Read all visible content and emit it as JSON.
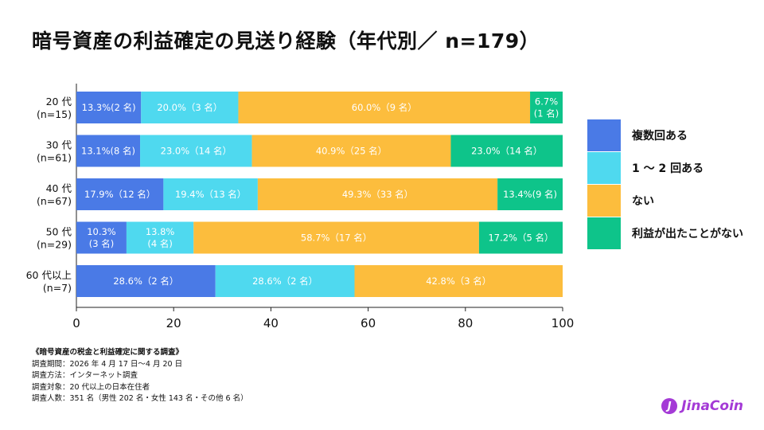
{
  "title": "暗号資産の利益確定の見送り経験（年代別／ n=179）",
  "chart_data": {
    "type": "bar",
    "orientation": "horizontal",
    "stacked": true,
    "categories": [
      [
        "20 代",
        "(n=15)"
      ],
      [
        "30 代",
        "(n=61)"
      ],
      [
        "40 代",
        "(n=67)"
      ],
      [
        "50 代",
        "(n=29)"
      ],
      [
        "60 代以上",
        "(n=7)"
      ]
    ],
    "xlim": [
      0,
      100
    ],
    "xticks": [
      "0",
      "20",
      "40",
      "60",
      "80",
      "100"
    ],
    "legend_position": "right",
    "series": [
      {
        "name": "複数回ある",
        "color": "#4a7ae6",
        "values": [
          13.3,
          13.1,
          17.9,
          10.3,
          28.6
        ],
        "labels": [
          [
            "13.3%(2 名)"
          ],
          [
            "13.1%(8 名)"
          ],
          [
            "17.9%（12 名）"
          ],
          [
            "10.3%",
            "(3 名)"
          ],
          [
            "28.6%（2 名）"
          ]
        ]
      },
      {
        "name": "1 ～ 2 回ある",
        "color": "#4fd9ef",
        "values": [
          20.0,
          23.0,
          19.4,
          13.8,
          28.6
        ],
        "labels": [
          [
            "20.0%（3 名）"
          ],
          [
            "23.0%（14 名）"
          ],
          [
            "19.4%（13 名）"
          ],
          [
            "13.8%",
            "(4 名)"
          ],
          [
            "28.6%（2 名）"
          ]
        ]
      },
      {
        "name": "ない",
        "color": "#fcbd3d",
        "values": [
          60.0,
          40.9,
          49.3,
          58.7,
          42.8
        ],
        "labels": [
          [
            "60.0%（9 名）"
          ],
          [
            "40.9%（25 名）"
          ],
          [
            "49.3%（33 名）"
          ],
          [
            "58.7%（17 名）"
          ],
          [
            "42.8%（3 名）"
          ]
        ]
      },
      {
        "name": "利益が出たことがない",
        "color": "#0ec48a",
        "values": [
          6.7,
          23.0,
          13.4,
          17.2,
          0
        ],
        "labels": [
          [
            "6.7%",
            "(1 名)"
          ],
          [
            "23.0%（14 名）"
          ],
          [
            "13.4%(9 名)"
          ],
          [
            "17.2%（5 名）"
          ],
          []
        ]
      }
    ]
  },
  "notes": [
    "《暗号資産の税金と利益確定に関する調査》",
    "調査期間：2026 年 4 月 17 日～4 月 20 日",
    "調査方法：インターネット調査",
    "調査対象：20 代以上の日本在住者",
    "調査人数：351 名（男性 202 名・女性 143 名・その他 6 名）"
  ],
  "logo": {
    "mark": "J",
    "text": "JinaCoin"
  }
}
